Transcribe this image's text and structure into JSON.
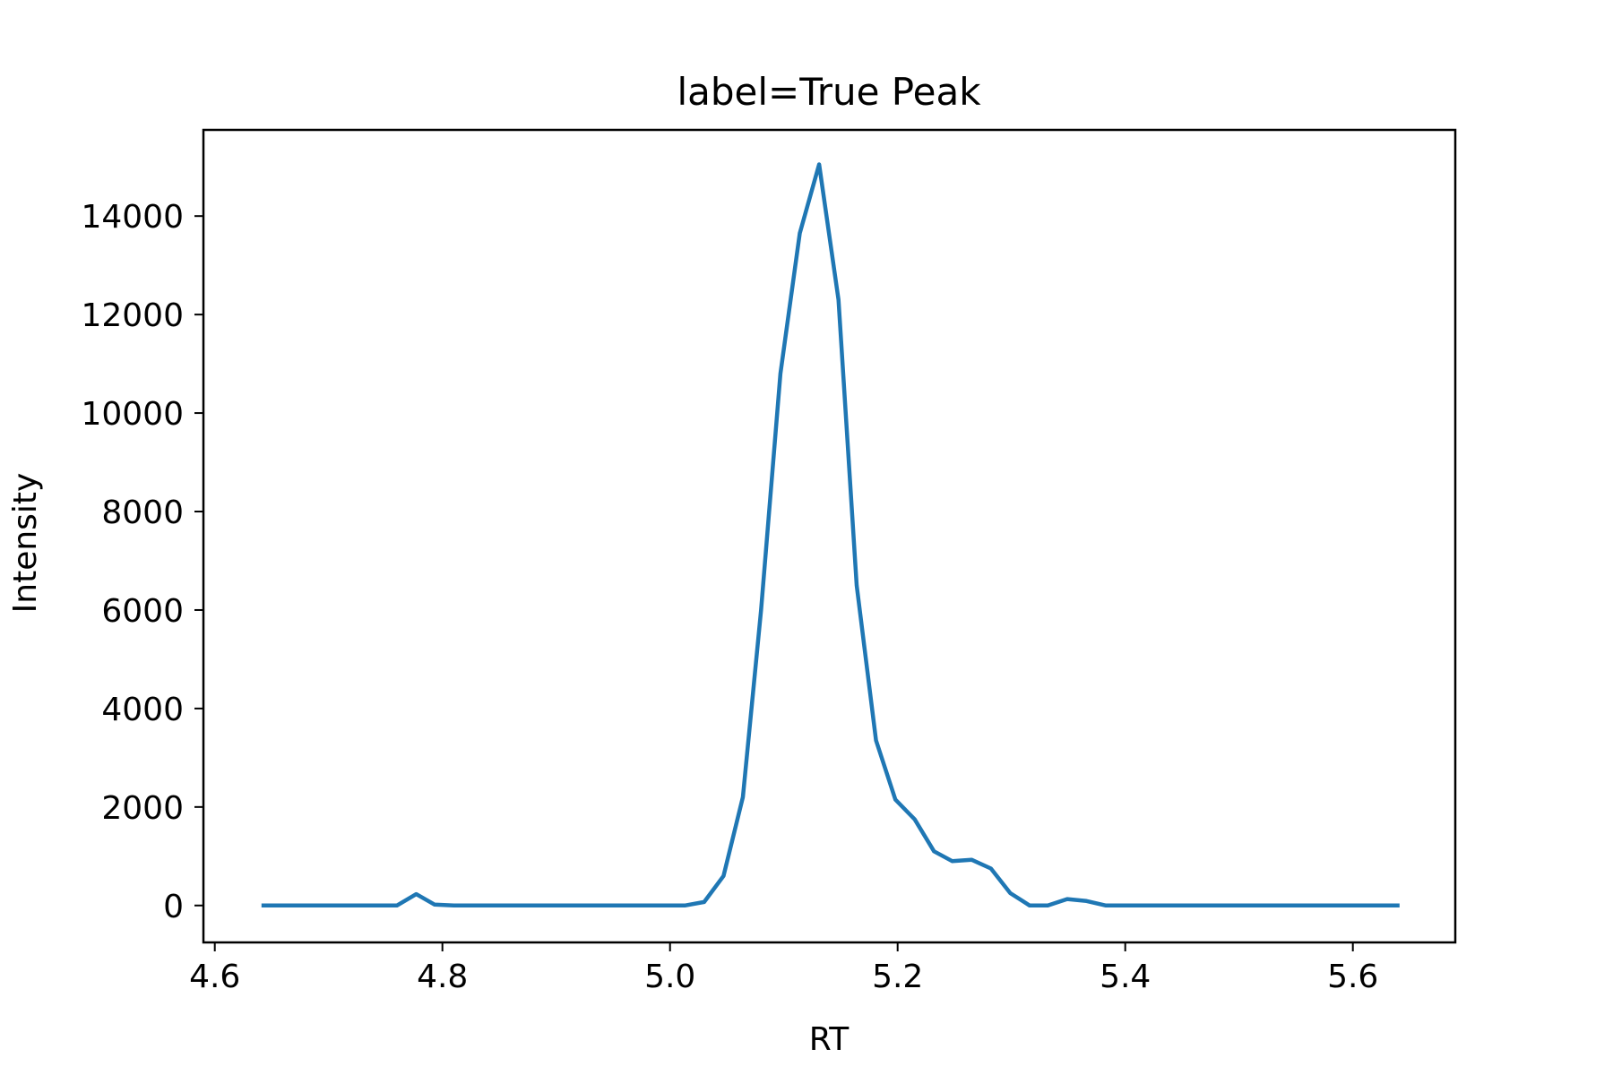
{
  "chart_data": {
    "type": "line",
    "title": "label=True Peak",
    "xlabel": "RT",
    "ylabel": "Intensity",
    "xlim": [
      4.59,
      5.69
    ],
    "ylim": [
      -750,
      15750
    ],
    "grid": false,
    "x_ticks": [
      4.6,
      4.8,
      5.0,
      5.2,
      5.4,
      5.6
    ],
    "x_tick_labels": [
      "4.6",
      "4.8",
      "5.0",
      "5.2",
      "5.4",
      "5.6"
    ],
    "y_ticks": [
      0,
      2000,
      4000,
      6000,
      8000,
      10000,
      12000,
      14000
    ],
    "y_tick_labels": [
      "0",
      "2000",
      "4000",
      "6000",
      "8000",
      "10000",
      "12000",
      "14000"
    ],
    "series": [
      {
        "color": "#1f77b4",
        "x": [
          4.641,
          4.76,
          4.777,
          4.793,
          4.81,
          4.997,
          5.013,
          5.03,
          5.047,
          5.064,
          5.08,
          5.097,
          5.114,
          5.131,
          5.148,
          5.164,
          5.181,
          5.198,
          5.215,
          5.232,
          5.248,
          5.265,
          5.282,
          5.299,
          5.316,
          5.332,
          5.349,
          5.366,
          5.383,
          5.641
        ],
        "y": [
          0,
          0,
          230,
          20,
          0,
          0,
          0,
          70,
          600,
          2200,
          6000,
          10800,
          13650,
          15050,
          12300,
          6500,
          3350,
          2150,
          1750,
          1100,
          900,
          930,
          750,
          250,
          0,
          0,
          130,
          90,
          0,
          0
        ]
      }
    ]
  }
}
